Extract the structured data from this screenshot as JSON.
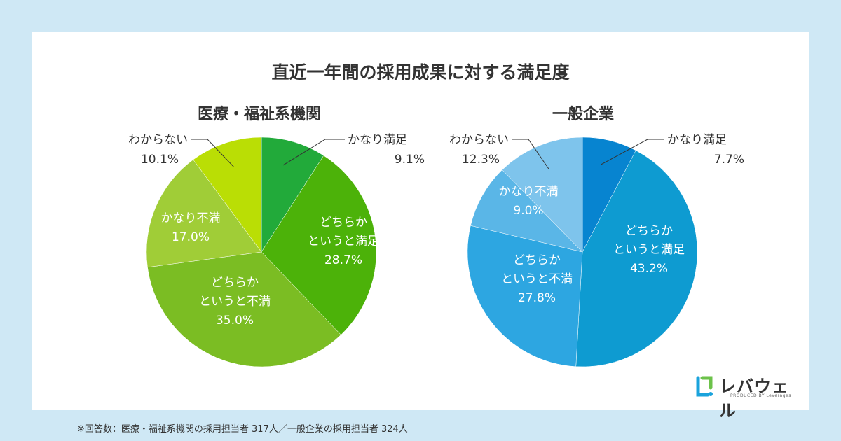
{
  "title": "直近一年間の採用成果に対する満足度",
  "footnote": "※回答数：医療・福祉系機関の採用担当者 317人／一般企業の採用担当者 324人",
  "brand": {
    "name": "レバウェル",
    "tagline": "PRODUCED BY Leverages"
  },
  "chart_data": [
    {
      "type": "pie",
      "title": "医療・福祉系機関",
      "slices": [
        {
          "label": [
            "かなり満足"
          ],
          "value": 9.1,
          "pct": "9.1%",
          "color": "#22aa3a",
          "label_color": "dark",
          "label_mode": "outside",
          "label_side": "right"
        },
        {
          "label": [
            "どちらか",
            "というと満足"
          ],
          "value": 28.7,
          "pct": "28.7%",
          "color": "#4cb209",
          "label_color": "white",
          "label_mode": "inside"
        },
        {
          "label": [
            "どちらか",
            "というと不満"
          ],
          "value": 35.0,
          "pct": "35.0%",
          "color": "#7bbd23",
          "label_color": "white",
          "label_mode": "inside"
        },
        {
          "label": [
            "かなり不満"
          ],
          "value": 17.0,
          "pct": "17.0%",
          "color": "#a0cd37",
          "label_color": "white",
          "label_mode": "inside"
        },
        {
          "label": [
            "わからない"
          ],
          "value": 10.1,
          "pct": "10.1%",
          "color": "#bade05",
          "label_color": "dark",
          "label_mode": "outside",
          "label_side": "left"
        }
      ]
    },
    {
      "type": "pie",
      "title": "一般企業",
      "slices": [
        {
          "label": [
            "かなり満足"
          ],
          "value": 7.7,
          "pct": "7.7%",
          "color": "#0784d0",
          "label_color": "dark",
          "label_mode": "outside",
          "label_side": "right"
        },
        {
          "label": [
            "どちらか",
            "というと満足"
          ],
          "value": 43.2,
          "pct": "43.2%",
          "color": "#0e9bd1",
          "label_color": "white",
          "label_mode": "inside"
        },
        {
          "label": [
            "どちらか",
            "というと不満"
          ],
          "value": 27.8,
          "pct": "27.8%",
          "color": "#2da6e1",
          "label_color": "white",
          "label_mode": "inside"
        },
        {
          "label": [
            "かなり不満"
          ],
          "value": 9.0,
          "pct": "9.0%",
          "color": "#5ab6e7",
          "label_color": "white",
          "label_mode": "inside"
        },
        {
          "label": [
            "わからない"
          ],
          "value": 12.3,
          "pct": "12.3%",
          "color": "#7ec4ec",
          "label_color": "dark",
          "label_mode": "outside",
          "label_side": "left"
        }
      ]
    }
  ]
}
